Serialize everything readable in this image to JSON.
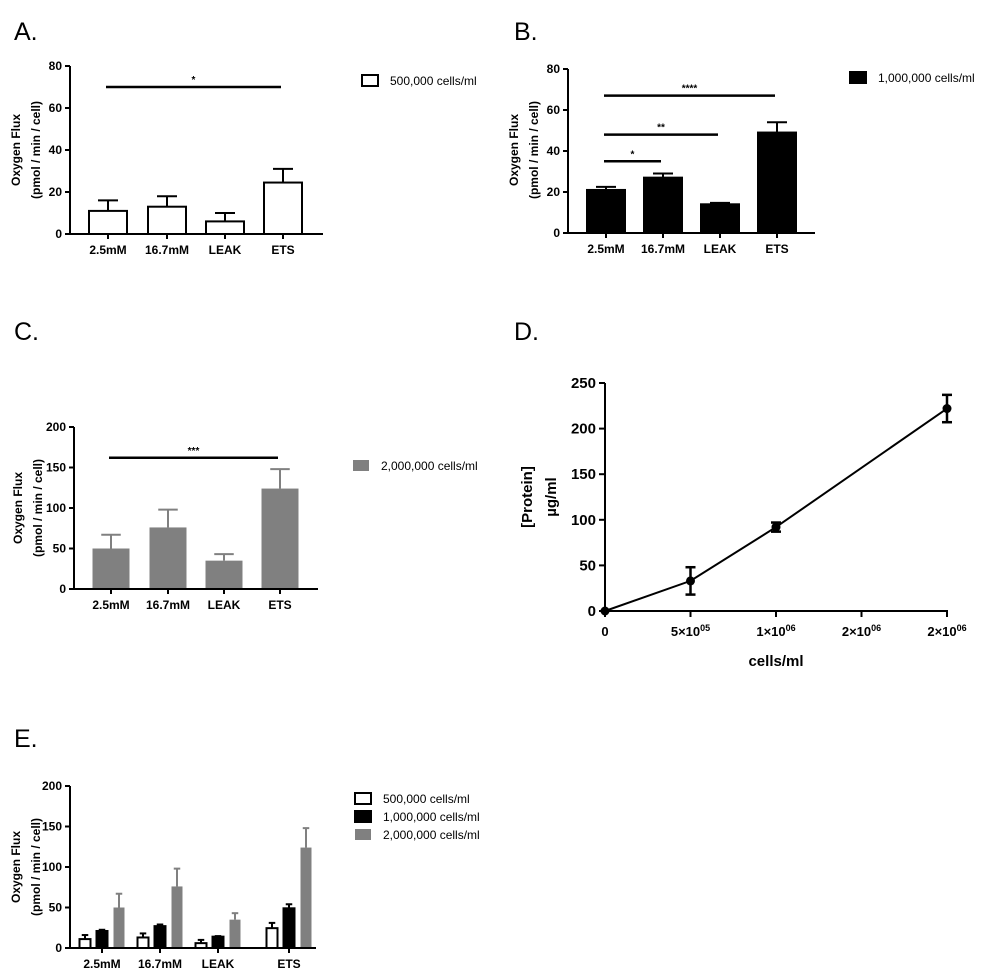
{
  "colors": {
    "500k": "#ffffff",
    "1M": "#000000",
    "2M": "#808080",
    "stroke": "#000000"
  },
  "chart_data": [
    {
      "panel": "A.",
      "type": "bar",
      "categories": [
        "2.5mM",
        "16.7mM",
        "LEAK",
        "ETS"
      ],
      "ylabel": [
        "Oxygen Flux",
        "(pmol / min / cell)"
      ],
      "ylim": [
        0,
        80
      ],
      "yticks": [
        0,
        20,
        40,
        60,
        80
      ],
      "series": [
        {
          "name": "500,000 cells/ml",
          "color": "#ffffff",
          "values": [
            11,
            13,
            6,
            24.5
          ],
          "errors": [
            5,
            5,
            4,
            6.5
          ]
        }
      ],
      "annotations": [
        {
          "from": "2.5mM",
          "to": "ETS",
          "y": 70,
          "label": "*"
        }
      ],
      "legend": "top-right",
      "grid": false
    },
    {
      "panel": "B.",
      "type": "bar",
      "categories": [
        "2.5mM",
        "16.7mM",
        "LEAK",
        "ETS"
      ],
      "ylabel": [
        "Oxygen Flux",
        "(pmol / min / cell)"
      ],
      "ylim": [
        0,
        80
      ],
      "yticks": [
        0,
        20,
        40,
        60,
        80
      ],
      "series": [
        {
          "name": "1,000,000 cells/ml",
          "color": "#000000",
          "values": [
            21,
            27,
            14,
            49
          ],
          "errors": [
            1.5,
            2,
            0.7,
            5
          ]
        }
      ],
      "annotations": [
        {
          "from": "2.5mM",
          "to": "ETS",
          "y": 67,
          "label": "****"
        },
        {
          "from": "2.5mM",
          "to": "LEAK",
          "y": 48,
          "label": "**"
        },
        {
          "from": "2.5mM",
          "to": "16.7mM",
          "y": 35,
          "label": "*"
        }
      ],
      "legend": "top-right",
      "grid": false
    },
    {
      "panel": "C.",
      "type": "bar",
      "categories": [
        "2.5mM",
        "16.7mM",
        "LEAK",
        "ETS"
      ],
      "ylabel": [
        "Oxygen Flux",
        "(pmol / min / cell)"
      ],
      "ylim": [
        0,
        200
      ],
      "yticks": [
        0,
        50,
        100,
        150,
        200
      ],
      "series": [
        {
          "name": "2,000,000 cells/ml",
          "color": "#808080",
          "values": [
            50,
            76,
            35,
            124
          ],
          "errors": [
            17,
            22,
            8,
            24
          ]
        }
      ],
      "annotations": [
        {
          "from": "2.5mM",
          "to": "ETS",
          "y": 162,
          "label": "***"
        }
      ],
      "legend": "top-right",
      "grid": false
    },
    {
      "panel": "D.",
      "type": "line",
      "xlabel": "cells/ml",
      "ylabel": [
        "[Protein]",
        "µg/ml"
      ],
      "x": [
        0,
        500000,
        1000000,
        2000000
      ],
      "y": [
        0,
        33,
        92,
        222
      ],
      "errors": [
        0,
        15,
        5,
        15
      ],
      "xlim": [
        0,
        2000000
      ],
      "ylim": [
        0,
        250
      ],
      "xticks": [
        {
          "value": 0,
          "mant": "0",
          "exp": ""
        },
        {
          "value": 500000,
          "mant": "5×10",
          "exp": "05"
        },
        {
          "value": 1000000,
          "mant": "1×10",
          "exp": "06"
        },
        {
          "value": 1500000,
          "mant": "2×10",
          "exp": "06"
        },
        {
          "value": 2000000,
          "mant": "2×10",
          "exp": "06"
        }
      ],
      "yticks": [
        0,
        50,
        100,
        150,
        200,
        250
      ],
      "grid": false
    },
    {
      "panel": "E.",
      "type": "bar",
      "categories": [
        "2.5mM",
        "16.7mM",
        "LEAK",
        "ETS"
      ],
      "ylabel": [
        "Oxygen Flux",
        "(pmol / min / cell)"
      ],
      "ylim": [
        0,
        200
      ],
      "yticks": [
        0,
        50,
        100,
        150,
        200
      ],
      "series": [
        {
          "name": "500,000 cells/ml",
          "color": "#ffffff",
          "values": [
            11,
            13,
            6,
            24.5
          ],
          "errors": [
            5,
            5,
            4,
            6.5
          ]
        },
        {
          "name": "1,000,000 cells/ml",
          "color": "#000000",
          "values": [
            21,
            27,
            14,
            49
          ],
          "errors": [
            1.5,
            2,
            0.7,
            5
          ]
        },
        {
          "name": "2,000,000 cells/ml",
          "color": "#808080",
          "values": [
            50,
            76,
            35,
            124
          ],
          "errors": [
            17,
            22,
            8,
            24
          ]
        }
      ],
      "annotations": [],
      "legend": "top-right",
      "grid": false
    }
  ]
}
